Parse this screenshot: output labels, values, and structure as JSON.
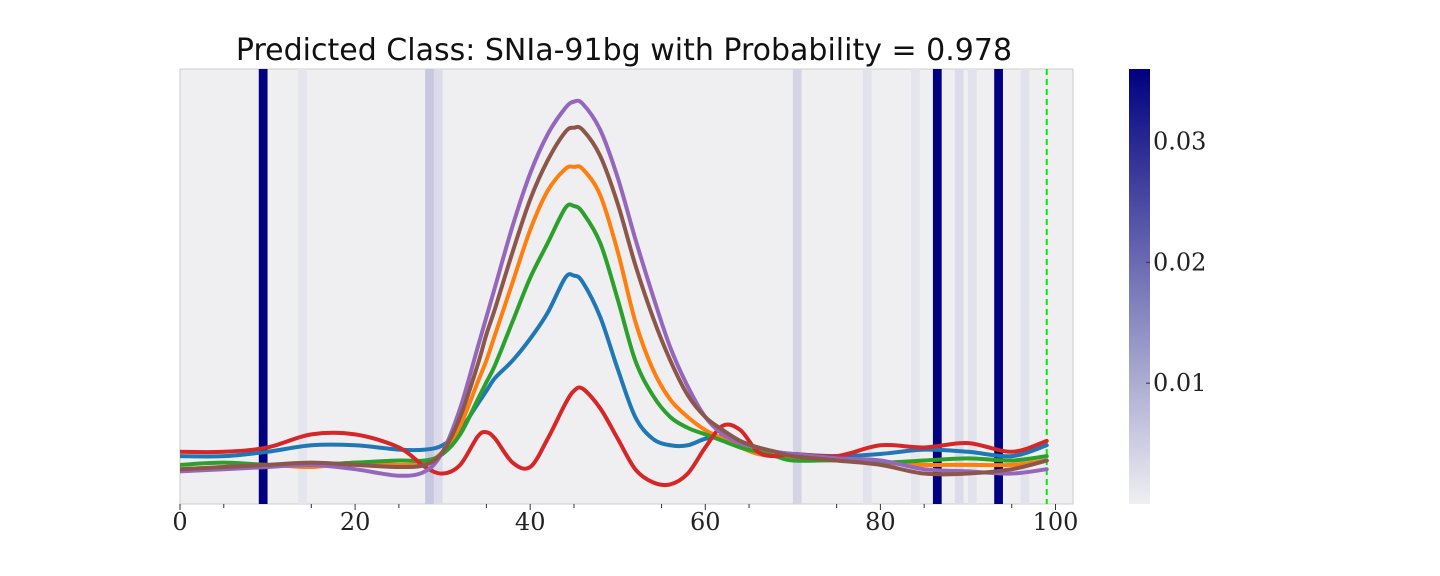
{
  "chart_data": {
    "type": "line",
    "title": "Predicted Class: SNIa-91bg with Probability = 0.978",
    "xlabel": "",
    "ylabel": "",
    "xlim": [
      0,
      102
    ],
    "ylim": [
      0,
      1
    ],
    "x_ticks": [
      0,
      20,
      40,
      60,
      80,
      100
    ],
    "x_tick_labels": [
      "0",
      "20",
      "40",
      "60",
      "80",
      "100"
    ],
    "y_ticks_visible": false,
    "grid": false,
    "legend": "none",
    "background_color": "#efeff2",
    "vertical_marker": {
      "x": 99,
      "color": "#00ee00",
      "style": "dashed"
    },
    "attention_weights": {
      "description": "Per-timestep attention shown as vertical shaded bands",
      "bands": [
        {
          "x": 9.5,
          "weight": 0.036
        },
        {
          "x": 14.0,
          "weight": 0.0015
        },
        {
          "x": 28.5,
          "weight": 0.006
        },
        {
          "x": 29.5,
          "weight": 0.003
        },
        {
          "x": 70.5,
          "weight": 0.004
        },
        {
          "x": 78.5,
          "weight": 0.002
        },
        {
          "x": 84.0,
          "weight": 0.0015
        },
        {
          "x": 86.5,
          "weight": 0.036
        },
        {
          "x": 89.0,
          "weight": 0.003
        },
        {
          "x": 90.5,
          "weight": 0.002
        },
        {
          "x": 93.5,
          "weight": 0.036
        },
        {
          "x": 96.5,
          "weight": 0.002
        }
      ]
    },
    "colorbar": {
      "range": [
        0,
        0.036
      ],
      "ticks": [
        0.01,
        0.02,
        0.03
      ],
      "tick_labels": [
        "0.01",
        "0.02",
        "0.03"
      ],
      "colors": [
        "#efeff2",
        "#000080"
      ]
    },
    "x": [
      0,
      5,
      10,
      15,
      20,
      25,
      28,
      30,
      32,
      34,
      35,
      36,
      38,
      40,
      42,
      44,
      45,
      46,
      48,
      50,
      52,
      54,
      56,
      58,
      60,
      62,
      64,
      66,
      68,
      70,
      75,
      80,
      85,
      90,
      95,
      99
    ],
    "series": [
      {
        "color": "#1f77b4",
        "values": [
          0.11,
          0.11,
          0.12,
          0.135,
          0.135,
          0.125,
          0.125,
          0.135,
          0.17,
          0.23,
          0.26,
          0.29,
          0.33,
          0.38,
          0.44,
          0.52,
          0.525,
          0.51,
          0.43,
          0.31,
          0.2,
          0.15,
          0.135,
          0.135,
          0.15,
          0.155,
          0.14,
          0.13,
          0.12,
          0.115,
          0.11,
          0.115,
          0.125,
          0.12,
          0.11,
          0.135
        ]
      },
      {
        "color": "#ff7f0e",
        "values": [
          0.08,
          0.085,
          0.09,
          0.085,
          0.095,
          0.09,
          0.095,
          0.12,
          0.18,
          0.28,
          0.33,
          0.39,
          0.51,
          0.63,
          0.72,
          0.77,
          0.775,
          0.77,
          0.71,
          0.58,
          0.42,
          0.31,
          0.24,
          0.2,
          0.17,
          0.15,
          0.13,
          0.115,
          0.11,
          0.105,
          0.1,
          0.095,
          0.09,
          0.09,
          0.09,
          0.1
        ]
      },
      {
        "color": "#2ca02c",
        "values": [
          0.09,
          0.095,
          0.09,
          0.09,
          0.095,
          0.1,
          0.1,
          0.115,
          0.16,
          0.24,
          0.28,
          0.32,
          0.42,
          0.52,
          0.6,
          0.68,
          0.685,
          0.67,
          0.6,
          0.47,
          0.33,
          0.25,
          0.2,
          0.175,
          0.16,
          0.145,
          0.13,
          0.12,
          0.11,
          0.1,
          0.1,
          0.095,
          0.1,
          0.105,
          0.1,
          0.11
        ]
      },
      {
        "color": "#d62728",
        "values": [
          0.12,
          0.12,
          0.13,
          0.16,
          0.16,
          0.13,
          0.085,
          0.07,
          0.09,
          0.155,
          0.165,
          0.15,
          0.095,
          0.085,
          0.15,
          0.23,
          0.26,
          0.265,
          0.22,
          0.15,
          0.08,
          0.05,
          0.045,
          0.07,
          0.13,
          0.18,
          0.17,
          0.12,
          0.11,
          0.115,
          0.11,
          0.135,
          0.13,
          0.14,
          0.12,
          0.145
        ]
      },
      {
        "color": "#9467bd",
        "values": [
          0.075,
          0.08,
          0.085,
          0.09,
          0.08,
          0.065,
          0.075,
          0.12,
          0.22,
          0.36,
          0.43,
          0.5,
          0.64,
          0.76,
          0.85,
          0.91,
          0.925,
          0.92,
          0.86,
          0.75,
          0.61,
          0.48,
          0.36,
          0.27,
          0.2,
          0.16,
          0.14,
          0.13,
          0.12,
          0.115,
          0.105,
          0.1,
          0.08,
          0.075,
          0.07,
          0.08
        ]
      },
      {
        "color": "#8c564b",
        "values": [
          0.08,
          0.085,
          0.09,
          0.095,
          0.09,
          0.085,
          0.09,
          0.12,
          0.2,
          0.32,
          0.39,
          0.45,
          0.58,
          0.7,
          0.79,
          0.855,
          0.865,
          0.86,
          0.8,
          0.69,
          0.55,
          0.43,
          0.33,
          0.25,
          0.2,
          0.17,
          0.145,
          0.13,
          0.12,
          0.11,
          0.1,
          0.09,
          0.07,
          0.07,
          0.08,
          0.1
        ]
      }
    ]
  }
}
